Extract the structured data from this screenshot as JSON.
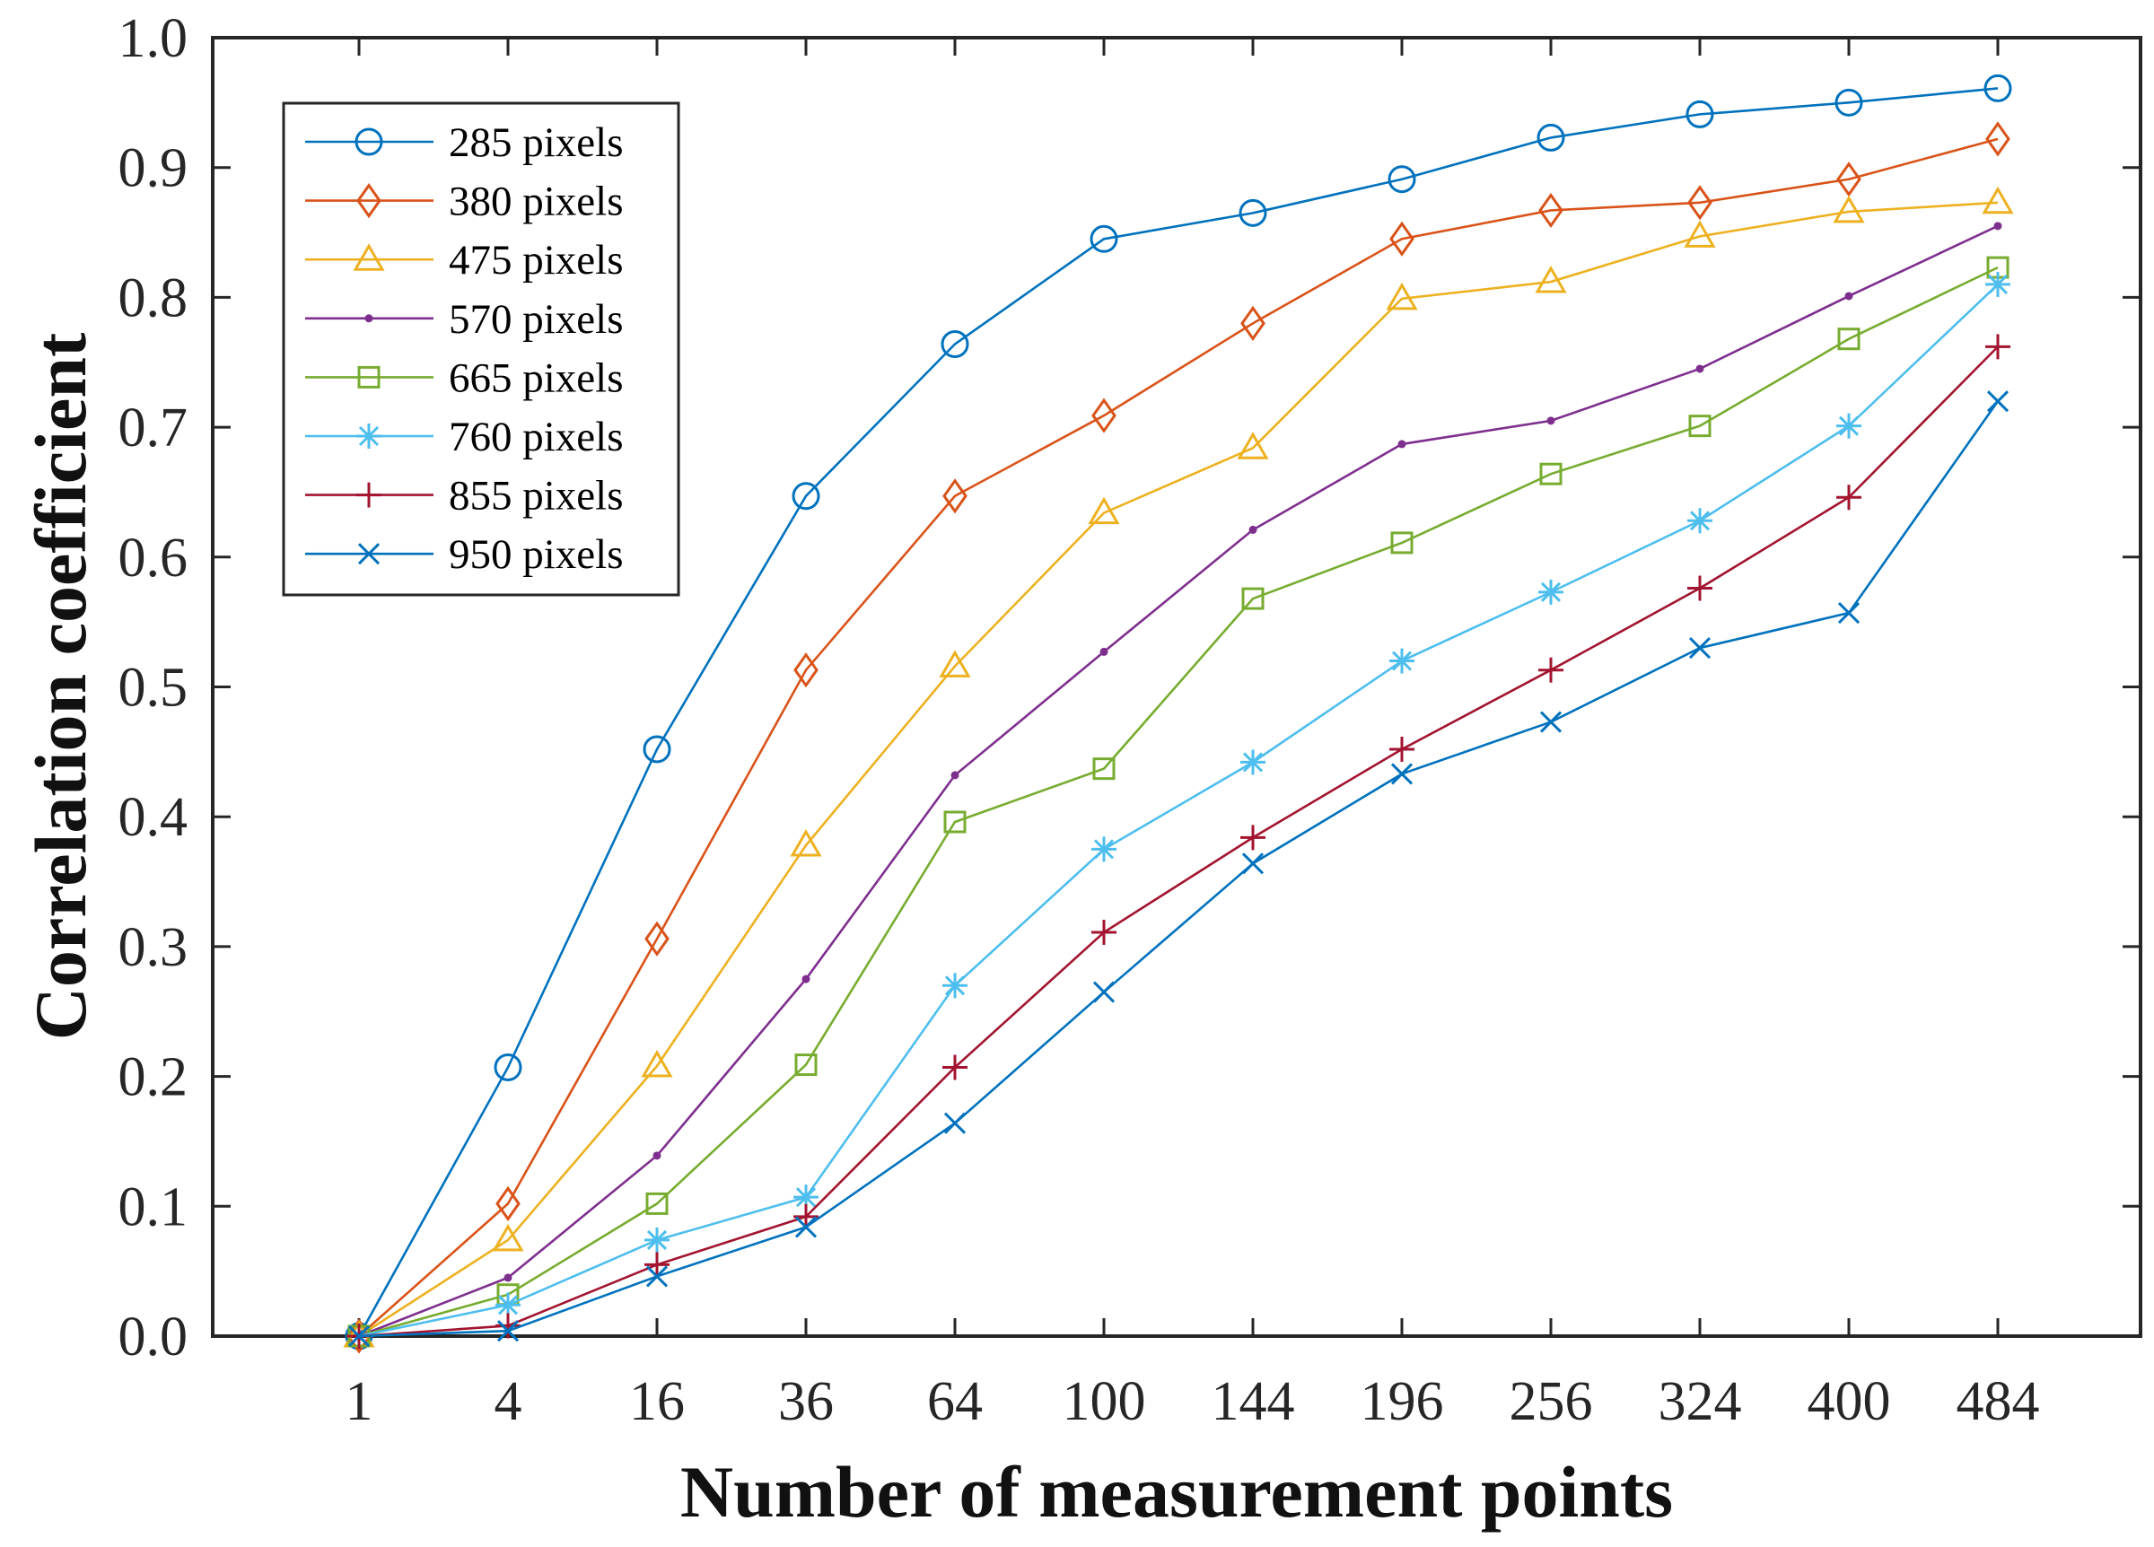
{
  "chart_data": {
    "type": "line",
    "title": "",
    "xlabel": "Number of measurement points",
    "ylabel": "Correlation coefficient",
    "categories": [
      "1",
      "4",
      "16",
      "36",
      "64",
      "100",
      "144",
      "196",
      "256",
      "324",
      "400",
      "484"
    ],
    "ylim": [
      0,
      1
    ],
    "yticks": [
      "0.0",
      "0.1",
      "0.2",
      "0.3",
      "0.4",
      "0.5",
      "0.6",
      "0.7",
      "0.8",
      "0.9",
      "1.0"
    ],
    "grid": false,
    "legend_position": "top-left",
    "series": [
      {
        "name": "285 pixels",
        "color": "#0072BD",
        "marker": "circle",
        "values": [
          0.0,
          0.207,
          0.452,
          0.647,
          0.764,
          0.845,
          0.865,
          0.891,
          0.923,
          0.941,
          0.95,
          0.961
        ]
      },
      {
        "name": "380 pixels",
        "color": "#D95319",
        "marker": "diamond",
        "values": [
          0.0,
          0.102,
          0.306,
          0.513,
          0.647,
          0.709,
          0.78,
          0.845,
          0.867,
          0.873,
          0.891,
          0.922
        ]
      },
      {
        "name": "475 pixels",
        "color": "#EDB120",
        "marker": "triangle",
        "values": [
          0.0,
          0.074,
          0.208,
          0.378,
          0.516,
          0.634,
          0.684,
          0.799,
          0.812,
          0.847,
          0.866,
          0.873
        ]
      },
      {
        "name": "570 pixels",
        "color": "#7E2F8E",
        "marker": "dot",
        "values": [
          0.0,
          0.045,
          0.139,
          0.275,
          0.432,
          0.527,
          0.621,
          0.687,
          0.705,
          0.745,
          0.801,
          0.855
        ]
      },
      {
        "name": "665 pixels",
        "color": "#77AC30",
        "marker": "square",
        "values": [
          0.0,
          0.032,
          0.102,
          0.209,
          0.396,
          0.437,
          0.568,
          0.611,
          0.664,
          0.701,
          0.768,
          0.823
        ]
      },
      {
        "name": "760 pixels",
        "color": "#4DBEEE",
        "marker": "asterisk",
        "values": [
          0.0,
          0.024,
          0.074,
          0.107,
          0.27,
          0.375,
          0.442,
          0.52,
          0.573,
          0.628,
          0.701,
          0.81
        ]
      },
      {
        "name": "855 pixels",
        "color": "#A2142F",
        "marker": "plus",
        "values": [
          0.0,
          0.008,
          0.055,
          0.092,
          0.207,
          0.311,
          0.384,
          0.452,
          0.513,
          0.576,
          0.646,
          0.762
        ]
      },
      {
        "name": "950 pixels",
        "color": "#0072BD",
        "marker": "x",
        "values": [
          0.0,
          0.004,
          0.046,
          0.084,
          0.164,
          0.265,
          0.364,
          0.433,
          0.473,
          0.53,
          0.557,
          0.72
        ]
      }
    ]
  }
}
